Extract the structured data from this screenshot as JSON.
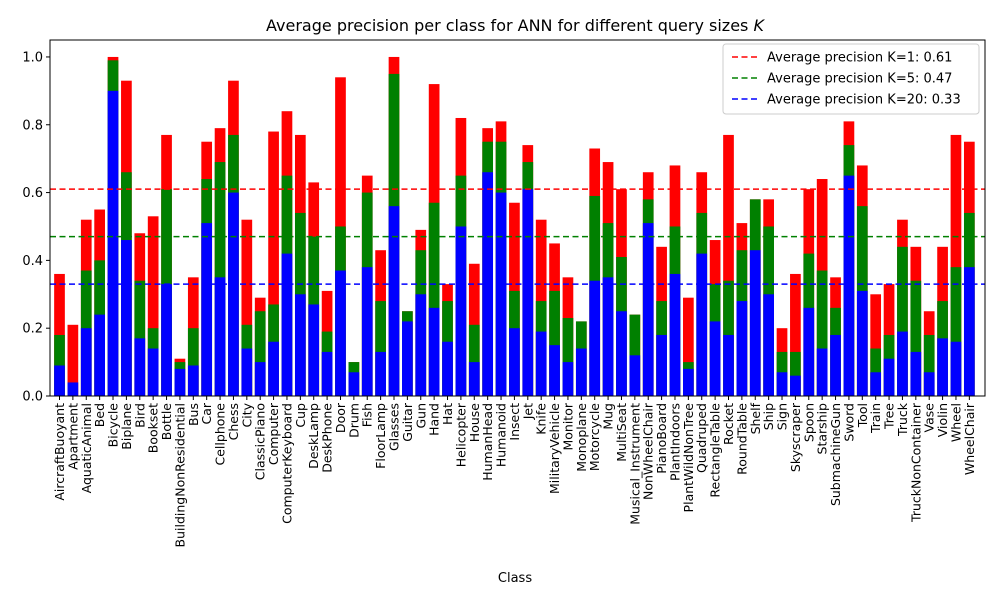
{
  "chart_data": {
    "type": "bar",
    "title": "Average precision per class for ANN for different query sizes K",
    "title_prefix": "Average precision per class for ANN for different query sizes ",
    "title_var": "K",
    "xlabel": "Class",
    "ylabel": "",
    "ylim": [
      0,
      1.05
    ],
    "yticks": [
      0.0,
      0.2,
      0.4,
      0.6,
      0.8,
      1.0
    ],
    "ytick_labels": [
      "0.0",
      "0.2",
      "0.4",
      "0.6",
      "0.8",
      "1.0"
    ],
    "grid": false,
    "legend_position": "top-right",
    "bar_layering": "overlapping, K=1 drawn behind K=5 drawn behind K=20",
    "categories": [
      "AircraftBuoyant",
      "Apartment",
      "AquaticAnimal",
      "Bed",
      "Bicycle",
      "Biplane",
      "Bird",
      "Bookset",
      "Bottle",
      "BuildingNonResidential",
      "Bus",
      "Car",
      "Cellphone",
      "Chess",
      "City",
      "ClassicPiano",
      "Computer",
      "ComputerKeyboard",
      "Cup",
      "DeskLamp",
      "DeskPhone",
      "Door",
      "Drum",
      "Fish",
      "FloorLamp",
      "Glasses",
      "Guitar",
      "Gun",
      "Hand",
      "Hat",
      "Helicopter",
      "House",
      "HumanHead",
      "Humanoid",
      "Insect",
      "Jet",
      "Knife",
      "MilitaryVehicle",
      "Monitor",
      "Monoplane",
      "Motorcycle",
      "Mug",
      "MultiSeat",
      "Musical_Instrument",
      "NonWheelChair",
      "PianoBoard",
      "PlantIndoors",
      "PlantWildNonTree",
      "Quadruped",
      "RectangleTable",
      "Rocket",
      "RoundTable",
      "Shelf",
      "Ship",
      "Sign",
      "Skyscraper",
      "Spoon",
      "Starship",
      "SubmachineGun",
      "Sword",
      "Tool",
      "Train",
      "Tree",
      "Truck",
      "TruckNonContainer",
      "Vase",
      "Violin",
      "Wheel",
      "WheelChair"
    ],
    "series": [
      {
        "name": "K=1",
        "color": "#ff0000",
        "values": [
          0.36,
          0.21,
          0.52,
          0.55,
          1.0,
          0.93,
          0.48,
          0.53,
          0.77,
          0.11,
          0.35,
          0.75,
          0.79,
          0.93,
          0.52,
          0.29,
          0.78,
          0.84,
          0.77,
          0.63,
          0.31,
          0.94,
          0.1,
          0.65,
          0.43,
          1.0,
          0.25,
          0.49,
          0.92,
          0.33,
          0.82,
          0.39,
          0.79,
          0.81,
          0.57,
          0.74,
          0.52,
          0.45,
          0.35,
          0.22,
          0.73,
          0.69,
          0.61,
          0.24,
          0.66,
          0.44,
          0.68,
          0.29,
          0.66,
          0.46,
          0.77,
          0.51,
          0.58,
          0.58,
          0.2,
          0.36,
          0.61,
          0.64,
          0.35,
          0.81,
          0.68,
          0.3,
          0.33,
          0.52,
          0.44,
          0.25,
          0.44,
          0.77,
          0.75
        ]
      },
      {
        "name": "K=5",
        "color": "#008000",
        "values": [
          0.18,
          0.0,
          0.37,
          0.4,
          0.99,
          0.66,
          0.34,
          0.2,
          0.61,
          0.1,
          0.2,
          0.64,
          0.69,
          0.77,
          0.21,
          0.25,
          0.27,
          0.65,
          0.54,
          0.47,
          0.19,
          0.5,
          0.1,
          0.6,
          0.28,
          0.95,
          0.25,
          0.43,
          0.57,
          0.28,
          0.65,
          0.21,
          0.75,
          0.75,
          0.31,
          0.69,
          0.28,
          0.31,
          0.23,
          0.22,
          0.59,
          0.51,
          0.41,
          0.24,
          0.58,
          0.28,
          0.5,
          0.1,
          0.54,
          0.33,
          0.34,
          0.43,
          0.58,
          0.5,
          0.13,
          0.13,
          0.42,
          0.37,
          0.26,
          0.74,
          0.56,
          0.14,
          0.18,
          0.44,
          0.34,
          0.18,
          0.28,
          0.38,
          0.54
        ]
      },
      {
        "name": "K=20",
        "color": "#0000ff",
        "values": [
          0.09,
          0.04,
          0.2,
          0.24,
          0.9,
          0.46,
          0.17,
          0.14,
          0.33,
          0.08,
          0.09,
          0.51,
          0.35,
          0.6,
          0.14,
          0.1,
          0.16,
          0.42,
          0.3,
          0.27,
          0.13,
          0.37,
          0.07,
          0.38,
          0.13,
          0.56,
          0.22,
          0.3,
          0.26,
          0.16,
          0.5,
          0.1,
          0.66,
          0.6,
          0.2,
          0.61,
          0.19,
          0.15,
          0.1,
          0.14,
          0.34,
          0.35,
          0.25,
          0.12,
          0.51,
          0.18,
          0.36,
          0.08,
          0.42,
          0.22,
          0.18,
          0.28,
          0.43,
          0.3,
          0.07,
          0.06,
          0.26,
          0.14,
          0.18,
          0.65,
          0.31,
          0.07,
          0.11,
          0.19,
          0.13,
          0.07,
          0.17,
          0.16,
          0.38
        ]
      }
    ],
    "reference_lines": [
      {
        "label": "Average precision K=1: 0.61",
        "value": 0.61,
        "color": "#ff0000",
        "style": "dashed"
      },
      {
        "label": "Average precision K=5: 0.47",
        "value": 0.47,
        "color": "#008000",
        "style": "dashed"
      },
      {
        "label": "Average precision K=20: 0.33",
        "value": 0.33,
        "color": "#0000ff",
        "style": "dashed"
      }
    ]
  }
}
